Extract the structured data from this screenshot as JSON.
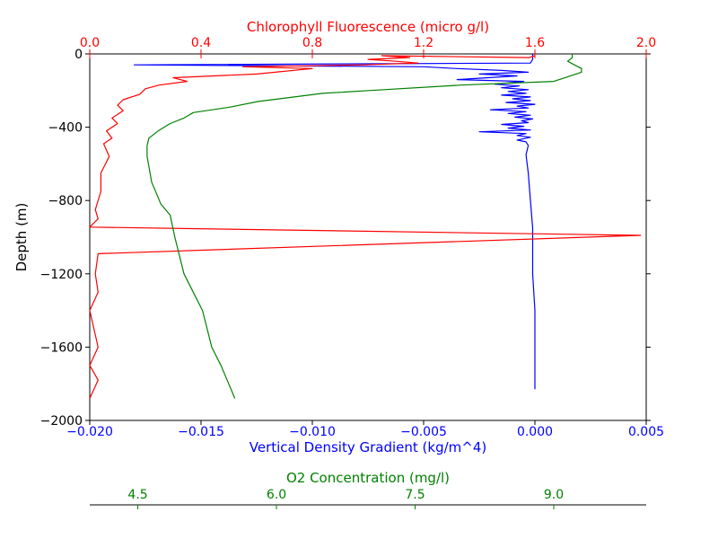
{
  "chart_data": {
    "type": "line",
    "title": "",
    "ylabel": "Depth (m)",
    "ylim": [
      -2000,
      0
    ],
    "yticks": [
      0,
      -400,
      -800,
      -1200,
      -1600,
      -2000
    ],
    "y_tick_labels": [
      "0",
      "−400",
      "−800",
      "−1200",
      "−1600",
      "−2000"
    ],
    "grid": false,
    "legend": "none",
    "axes": {
      "bottom": {
        "label": "Vertical Density Gradient (kg/m^4)",
        "color": "#0000ff",
        "lim": [
          -0.02,
          0.005
        ],
        "ticks": [
          -0.02,
          -0.015,
          -0.01,
          -0.005,
          0.0,
          0.005
        ],
        "tick_labels": [
          "−0.020",
          "−0.015",
          "−0.010",
          "−0.005",
          "0.000",
          "0.005"
        ]
      },
      "top": {
        "label": "Chlorophyll Fluorescence (micro g/l)",
        "color": "#ff0000",
        "lim": [
          0.0,
          2.0
        ],
        "ticks": [
          0.0,
          0.4,
          0.8,
          1.2,
          1.6,
          2.0
        ],
        "tick_labels": [
          "0.0",
          "0.4",
          "0.8",
          "1.2",
          "1.6",
          "2.0"
        ]
      },
      "offset_bottom": {
        "label": "O2 Concentration (mg/l)",
        "color": "#008000",
        "lim": [
          3.98,
          10.0
        ],
        "ticks": [
          4.5,
          6.0,
          7.5,
          9.0
        ],
        "tick_labels": [
          "4.5",
          "6.0",
          "7.5",
          "9.0"
        ]
      }
    },
    "series": [
      {
        "axis": "bottom",
        "color": "#0000ff",
        "x": [
          -0.0001,
          -0.0001,
          -0.0002,
          -0.018,
          -0.005,
          -0.0035,
          -0.0015,
          -0.0003,
          -0.0025,
          -0.0008,
          -0.0035,
          -0.0005,
          -0.0018,
          -0.0007,
          -0.0015,
          -0.0003,
          -0.0012,
          -0.0004,
          -0.0015,
          -0.0002,
          -0.001,
          -0.0002,
          -0.0013,
          0.0,
          -0.0008,
          -0.0003,
          -0.002,
          -0.0004,
          -0.0012,
          -0.0002,
          -0.0009,
          -0.0001,
          -0.0006,
          -0.0003,
          -0.0015,
          -0.0005,
          -0.0012,
          -0.0002,
          -0.0025,
          -0.0004,
          -0.0008,
          -0.0002,
          -0.0008,
          -0.0004,
          -0.0003,
          -0.0004,
          -0.0003,
          -0.0002,
          -0.0001,
          -0.0001,
          -0.0001,
          0.0,
          0.0,
          0.0
        ],
        "y": [
          0,
          -30,
          -50,
          -60,
          -70,
          -80,
          -90,
          -100,
          -110,
          -120,
          -140,
          -150,
          -165,
          -175,
          -185,
          -195,
          -205,
          -215,
          -225,
          -235,
          -245,
          -255,
          -265,
          -275,
          -285,
          -295,
          -305,
          -315,
          -325,
          -335,
          -345,
          -355,
          -365,
          -375,
          -385,
          -395,
          -405,
          -415,
          -425,
          -435,
          -445,
          -455,
          -470,
          -480,
          -500,
          -550,
          -650,
          -800,
          -950,
          -1050,
          -1200,
          -1400,
          -1600,
          -1830
        ]
      },
      {
        "axis": "top",
        "color": "#ff0000",
        "x": [
          1.6,
          1.58,
          1.05,
          1.15,
          1.0,
          1.1,
          1.18,
          0.98,
          0.55,
          0.8,
          0.6,
          0.3,
          0.35,
          0.25,
          0.2,
          0.18,
          0.12,
          0.1,
          0.12,
          0.08,
          0.1,
          0.06,
          0.08,
          0.05,
          0.07,
          0.04,
          0.04,
          0.02,
          0.03,
          0.0,
          1.98,
          0.03,
          0.02,
          0.03,
          0.0,
          0.03,
          0.0,
          0.03,
          0.0
        ],
        "y": [
          -10,
          -20,
          -10,
          -20,
          -30,
          -40,
          -50,
          -60,
          -70,
          -80,
          -110,
          -130,
          -150,
          -170,
          -190,
          -220,
          -250,
          -280,
          -310,
          -350,
          -380,
          -420,
          -460,
          -490,
          -560,
          -650,
          -750,
          -850,
          -900,
          -945,
          -990,
          -1090,
          -1200,
          -1300,
          -1400,
          -1600,
          -1700,
          -1780,
          -1880
        ]
      },
      {
        "axis": "offset_bottom",
        "color": "#008000",
        "x": [
          9.2,
          9.2,
          9.15,
          9.3,
          9.3,
          9.0,
          8.0,
          7.0,
          6.5,
          5.8,
          5.5,
          5.1,
          5.0,
          4.85,
          4.72,
          4.62,
          4.6,
          4.6,
          4.65,
          4.75,
          4.85,
          4.9,
          5.0,
          5.1,
          5.2,
          5.25,
          5.3,
          5.4,
          5.55
        ],
        "y": [
          0,
          -20,
          -40,
          -80,
          -100,
          -150,
          -170,
          -200,
          -215,
          -260,
          -290,
          -320,
          -350,
          -380,
          -420,
          -460,
          -500,
          -560,
          -700,
          -820,
          -880,
          -1000,
          -1200,
          -1300,
          -1400,
          -1500,
          -1600,
          -1700,
          -1880
        ]
      }
    ]
  }
}
